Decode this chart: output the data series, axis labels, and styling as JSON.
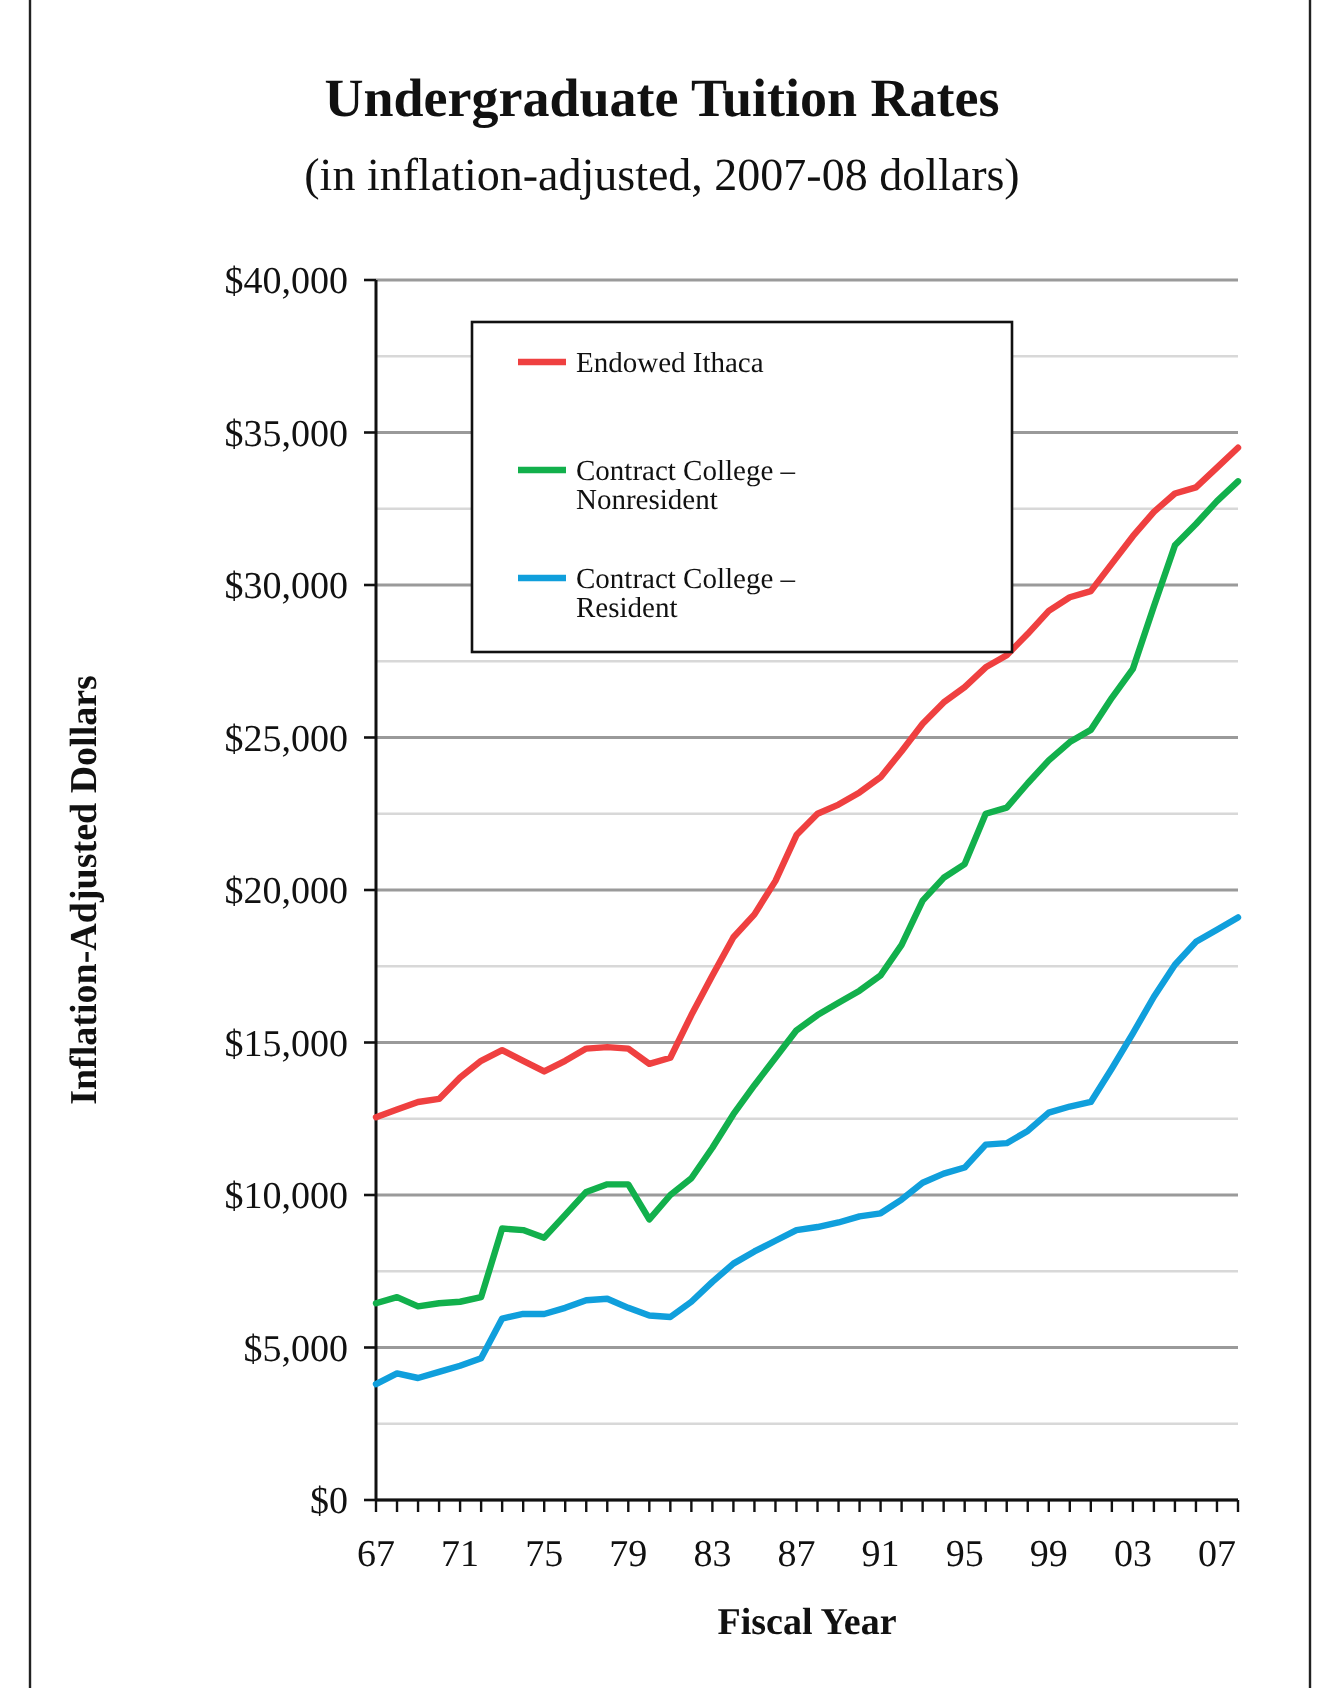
{
  "chart_data": {
    "type": "line",
    "title": "Undergraduate Tuition Rates",
    "subtitle": "(in inflation-adjusted, 2007-08 dollars)",
    "xlabel": "Fiscal Year",
    "ylabel": "Inflation-Adjusted Dollars",
    "x": [
      1967,
      1968,
      1969,
      1970,
      1971,
      1972,
      1973,
      1974,
      1975,
      1976,
      1977,
      1978,
      1979,
      1980,
      1981,
      1982,
      1983,
      1984,
      1985,
      1986,
      1987,
      1988,
      1989,
      1990,
      1991,
      1992,
      1993,
      1994,
      1995,
      1996,
      1997,
      1998,
      1999,
      2000,
      2001,
      2002,
      2003,
      2004,
      2005,
      2006,
      2007,
      2008
    ],
    "series": [
      {
        "name": "Endowed Ithaca",
        "color": "#ef4040",
        "values": [
          12550,
          12800,
          13050,
          13150,
          13850,
          14400,
          14750,
          14400,
          14050,
          14400,
          14800,
          14850,
          14800,
          14300,
          14500,
          15900,
          17200,
          18450,
          19200,
          20300,
          21800,
          22500,
          22800,
          23200,
          23700,
          24550,
          25450,
          26150,
          26650,
          27300,
          27700,
          28400,
          29150,
          29600,
          29800,
          30700,
          31600,
          32400,
          33000,
          33200,
          33850,
          34500
        ]
      },
      {
        "name": "Contract College – Nonresident",
        "color": "#12b04c",
        "values": [
          6450,
          6650,
          6350,
          6450,
          6500,
          6650,
          8900,
          8850,
          8600,
          9350,
          10100,
          10350,
          10350,
          9200,
          10000,
          10550,
          11550,
          12650,
          13600,
          14500,
          15400,
          15900,
          16300,
          16700,
          17200,
          18200,
          19650,
          20400,
          20850,
          22500,
          22700,
          23500,
          24250,
          24850,
          25250,
          26300,
          27250,
          29300,
          31300,
          32000,
          32750,
          33400
        ]
      },
      {
        "name": "Contract College – Resident",
        "color": "#109fdc",
        "values": [
          3800,
          4150,
          4000,
          4200,
          4400,
          4650,
          5950,
          6100,
          6100,
          6300,
          6550,
          6600,
          6300,
          6050,
          6000,
          6500,
          7150,
          7750,
          8150,
          8500,
          8850,
          8950,
          9100,
          9300,
          9400,
          9850,
          10400,
          10700,
          10900,
          11650,
          11700,
          12100,
          12700,
          12900,
          13050,
          14150,
          15300,
          16500,
          17550,
          18300,
          18700,
          19100
        ]
      }
    ],
    "xlim": [
      1967,
      2008
    ],
    "xticks": [
      {
        "value": 1967,
        "label": "67"
      },
      {
        "value": 1968,
        "label": null
      },
      {
        "value": 1969,
        "label": null
      },
      {
        "value": 1970,
        "label": null
      },
      {
        "value": 1971,
        "label": "71"
      },
      {
        "value": 1972,
        "label": null
      },
      {
        "value": 1973,
        "label": null
      },
      {
        "value": 1974,
        "label": null
      },
      {
        "value": 1975,
        "label": "75"
      },
      {
        "value": 1976,
        "label": null
      },
      {
        "value": 1977,
        "label": null
      },
      {
        "value": 1978,
        "label": null
      },
      {
        "value": 1979,
        "label": "79"
      },
      {
        "value": 1980,
        "label": null
      },
      {
        "value": 1981,
        "label": null
      },
      {
        "value": 1982,
        "label": null
      },
      {
        "value": 1983,
        "label": "83"
      },
      {
        "value": 1984,
        "label": null
      },
      {
        "value": 1985,
        "label": null
      },
      {
        "value": 1986,
        "label": null
      },
      {
        "value": 1987,
        "label": "87"
      },
      {
        "value": 1988,
        "label": null
      },
      {
        "value": 1989,
        "label": null
      },
      {
        "value": 1990,
        "label": null
      },
      {
        "value": 1991,
        "label": "91"
      },
      {
        "value": 1992,
        "label": null
      },
      {
        "value": 1993,
        "label": null
      },
      {
        "value": 1994,
        "label": null
      },
      {
        "value": 1995,
        "label": "95"
      },
      {
        "value": 1996,
        "label": null
      },
      {
        "value": 1997,
        "label": null
      },
      {
        "value": 1998,
        "label": null
      },
      {
        "value": 1999,
        "label": "99"
      },
      {
        "value": 2000,
        "label": null
      },
      {
        "value": 2001,
        "label": null
      },
      {
        "value": 2002,
        "label": null
      },
      {
        "value": 2003,
        "label": "03"
      },
      {
        "value": 2004,
        "label": null
      },
      {
        "value": 2005,
        "label": null
      },
      {
        "value": 2006,
        "label": null
      },
      {
        "value": 2007,
        "label": "07"
      },
      {
        "value": 2008,
        "label": null
      }
    ],
    "ylim": [
      0,
      40000
    ],
    "yticks": [
      {
        "value": 0,
        "label": "$0"
      },
      {
        "value": 2500,
        "label": null
      },
      {
        "value": 5000,
        "label": "$5,000"
      },
      {
        "value": 7500,
        "label": null
      },
      {
        "value": 10000,
        "label": "$10,000"
      },
      {
        "value": 12500,
        "label": null
      },
      {
        "value": 15000,
        "label": "$15,000"
      },
      {
        "value": 17500,
        "label": null
      },
      {
        "value": 20000,
        "label": "$20,000"
      },
      {
        "value": 22500,
        "label": null
      },
      {
        "value": 25000,
        "label": "$25,000"
      },
      {
        "value": 27500,
        "label": null
      },
      {
        "value": 30000,
        "label": "$30,000"
      },
      {
        "value": 32500,
        "label": null
      },
      {
        "value": 35000,
        "label": "$35,000"
      },
      {
        "value": 37500,
        "label": null
      },
      {
        "value": 40000,
        "label": "$40,000"
      }
    ],
    "grid": "y",
    "legend": "top left",
    "marker": "none",
    "line_style": "solid"
  }
}
